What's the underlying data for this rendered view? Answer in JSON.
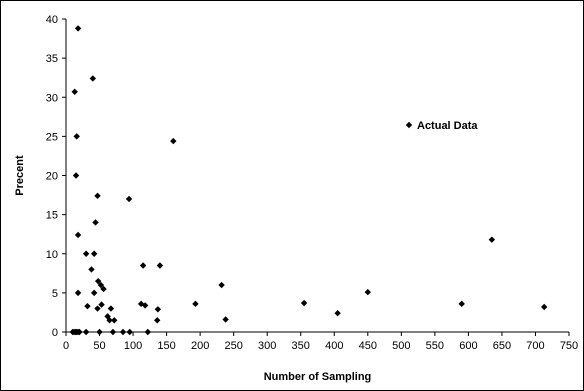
{
  "chart_data": {
    "type": "scatter",
    "title": "",
    "xlabel": "Number of Sampling",
    "ylabel": "Precent",
    "xlim": [
      0,
      750
    ],
    "ylim": [
      0,
      40
    ],
    "x_ticks": [
      "0",
      "50",
      "100",
      "150",
      "200",
      "250",
      "300",
      "350",
      "400",
      "450",
      "500",
      "550",
      "600",
      "650",
      "700",
      "750"
    ],
    "y_ticks": [
      "0",
      "5",
      "10",
      "15",
      "20",
      "25",
      "30",
      "35",
      "40"
    ],
    "grid": false,
    "legend": {
      "position": "inside-right",
      "entries": [
        "Actual Data"
      ]
    },
    "marker_color": "#000000",
    "series": [
      {
        "name": "Actual Data",
        "points": [
          [
            18,
            38.8
          ],
          [
            13,
            30.7
          ],
          [
            40,
            32.4
          ],
          [
            16,
            25.0
          ],
          [
            15,
            20.0
          ],
          [
            160,
            24.4
          ],
          [
            47,
            17.4
          ],
          [
            94,
            17.0
          ],
          [
            18,
            12.4
          ],
          [
            44,
            14.0
          ],
          [
            30,
            10.0
          ],
          [
            42,
            10.0
          ],
          [
            38,
            8.0
          ],
          [
            115,
            8.5
          ],
          [
            140,
            8.5
          ],
          [
            635,
            11.8
          ],
          [
            48,
            6.5
          ],
          [
            52,
            6.0
          ],
          [
            56,
            5.5
          ],
          [
            18,
            5.0
          ],
          [
            42,
            5.0
          ],
          [
            232,
            6.0
          ],
          [
            450,
            5.1
          ],
          [
            53,
            3.5
          ],
          [
            47,
            3.0
          ],
          [
            32,
            3.3
          ],
          [
            67,
            3.0
          ],
          [
            112,
            3.6
          ],
          [
            118,
            3.4
          ],
          [
            137,
            2.9
          ],
          [
            193,
            3.6
          ],
          [
            355,
            3.7
          ],
          [
            590,
            3.6
          ],
          [
            713,
            3.2
          ],
          [
            405,
            2.4
          ],
          [
            238,
            1.6
          ],
          [
            62,
            2.0
          ],
          [
            65,
            1.5
          ],
          [
            72,
            1.5
          ],
          [
            136,
            1.5
          ],
          [
            10,
            0
          ],
          [
            12,
            0
          ],
          [
            14,
            0
          ],
          [
            16,
            0
          ],
          [
            18,
            0
          ],
          [
            20,
            0
          ],
          [
            30,
            0
          ],
          [
            50,
            0
          ],
          [
            70,
            0
          ],
          [
            85,
            0
          ],
          [
            95,
            0
          ],
          [
            122,
            0
          ]
        ]
      }
    ]
  }
}
